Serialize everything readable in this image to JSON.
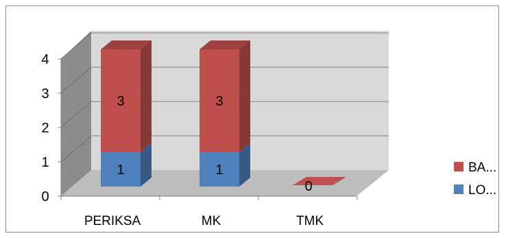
{
  "chart_data": {
    "type": "bar",
    "stacked": true,
    "three_d": true,
    "categories": [
      "PERIKSA",
      "MK",
      "TMK"
    ],
    "series": [
      {
        "name": "LO...",
        "values": [
          1,
          1,
          0
        ],
        "color": "#4f81bd"
      },
      {
        "name": "BA...",
        "values": [
          3,
          3,
          0
        ],
        "color": "#c0504d"
      }
    ],
    "ylim": [
      0,
      4
    ],
    "yticks": [
      "0",
      "1",
      "2",
      "3",
      "4"
    ],
    "grid": true,
    "legend_position": "right",
    "data_labels": [
      "1",
      "3",
      "1",
      "3",
      "0"
    ]
  }
}
